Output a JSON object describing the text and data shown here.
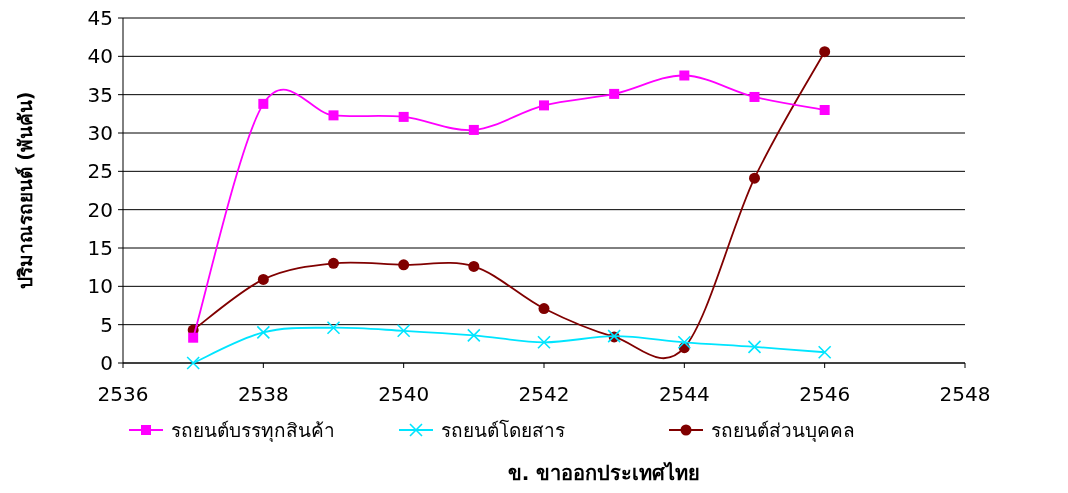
{
  "chart_data": {
    "type": "line",
    "title": "ข. ขาออกประเทศไทย",
    "ylabel": "ปริมาณรถยนต์ (พันคัน)",
    "x": [
      2537,
      2538,
      2539,
      2540,
      2541,
      2542,
      2543,
      2544,
      2545,
      2546
    ],
    "xlim": [
      2536,
      2548
    ],
    "xticks": [
      2536,
      2538,
      2540,
      2542,
      2544,
      2546,
      2548
    ],
    "ylim": [
      0,
      45
    ],
    "yticks": [
      0,
      5,
      10,
      15,
      20,
      25,
      30,
      35,
      40,
      45
    ],
    "grid": "y",
    "legend": "bottom",
    "series": [
      {
        "name": "รถยนต์บรรทุกสินค้า",
        "color": "#ff00ff",
        "marker": "square",
        "values": [
          3.3,
          33.8,
          32.3,
          32.1,
          30.4,
          33.6,
          35.1,
          37.5,
          34.7,
          33.0
        ]
      },
      {
        "name": "รถยนต์โดยสาร",
        "color": "#00e5ff",
        "marker": "cross",
        "values": [
          0,
          4.0,
          4.6,
          4.2,
          3.6,
          2.7,
          3.5,
          2.7,
          2.1,
          1.4
        ]
      },
      {
        "name": "รถยนต์ส่วนบุคคล",
        "color": "#800000",
        "marker": "circle",
        "values": [
          4.3,
          10.9,
          13.0,
          12.8,
          12.6,
          7.1,
          3.4,
          2.0,
          24.1,
          40.6
        ]
      }
    ]
  }
}
